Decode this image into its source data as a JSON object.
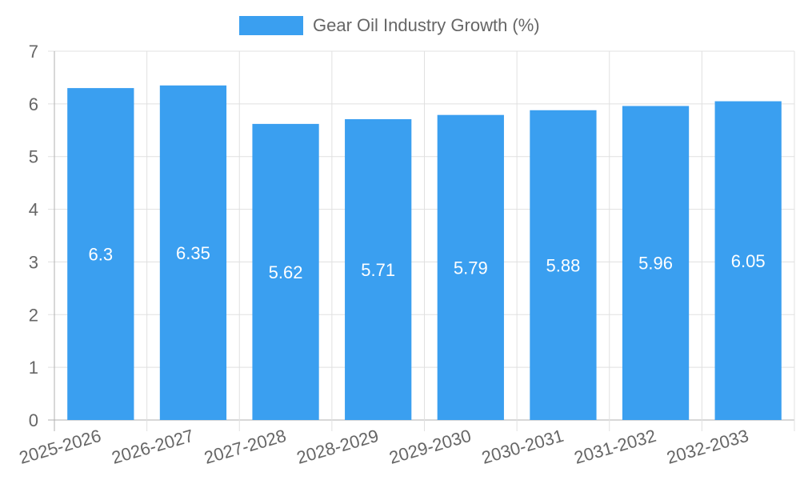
{
  "chart_data": {
    "type": "bar",
    "title": "",
    "xlabel": "",
    "ylabel": "",
    "categories": [
      "2025-2026",
      "2026-2027",
      "2027-2028",
      "2028-2029",
      "2029-2030",
      "2030-2031",
      "2031-2032",
      "2032-2033"
    ],
    "series": [
      {
        "name": "Gear Oil Industry Growth (%)",
        "values": [
          6.3,
          6.35,
          5.62,
          5.71,
          5.79,
          5.88,
          5.96,
          6.05
        ],
        "color": "#3a9ff0"
      }
    ],
    "ylim": [
      0,
      7
    ],
    "yticks": [
      0,
      1,
      2,
      3,
      4,
      5,
      6,
      7
    ],
    "grid": true,
    "legend_position": "top-center",
    "data_labels": true
  }
}
